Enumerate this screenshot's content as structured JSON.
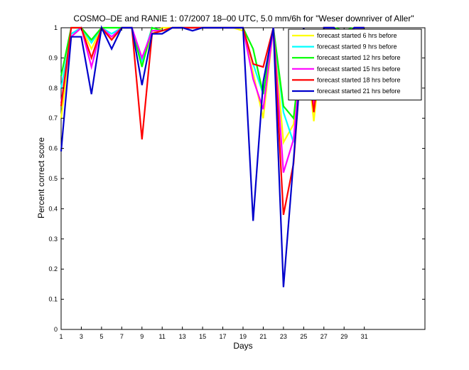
{
  "chart_data": {
    "type": "line",
    "title": "COSMO–DE and RANIE 1: 07/2007 18–00 UTC, 5.0 mm/6h for \"Weser downriver of Aller\"",
    "xlabel": "Days",
    "ylabel": "Percent correct score",
    "xlim": [
      1,
      37
    ],
    "ylim": [
      0,
      1
    ],
    "xticks": [
      1,
      3,
      5,
      7,
      9,
      11,
      13,
      15,
      17,
      19,
      21,
      23,
      25,
      27,
      29,
      31
    ],
    "yticks": [
      0,
      0.1,
      0.2,
      0.3,
      0.4,
      0.5,
      0.6,
      0.7,
      0.8,
      0.9,
      1
    ],
    "ytick_labels": [
      "0",
      "0.1",
      "0.2",
      "0.3",
      "0.4",
      "0.5",
      "0.6",
      "0.7",
      "0.8",
      "0.9",
      "1"
    ],
    "grid": false,
    "legend_position": "top-right",
    "x": [
      1,
      2,
      3,
      4,
      5,
      6,
      7,
      8,
      9,
      10,
      11,
      12,
      13,
      14,
      15,
      16,
      17,
      18,
      19,
      20,
      21,
      22,
      23,
      24,
      25,
      26,
      27,
      28,
      29,
      30,
      31
    ],
    "series": [
      {
        "name": "forecast started 6 hrs before",
        "color": "#ffff00",
        "values": [
          0.7,
          0.97,
          1.0,
          0.93,
          1.0,
          0.96,
          1.0,
          1.0,
          0.88,
          0.98,
          1.0,
          1.0,
          1.0,
          1.0,
          1.0,
          1.0,
          1.0,
          1.0,
          0.99,
          0.85,
          0.7,
          1.0,
          0.62,
          0.68,
          1.0,
          0.69,
          1.0,
          1.0,
          0.94,
          1.0,
          1.0
        ]
      },
      {
        "name": "forecast started 9 hrs before",
        "color": "#00ffff",
        "values": [
          0.8,
          0.98,
          1.0,
          0.95,
          1.0,
          0.98,
          1.0,
          1.0,
          0.89,
          1.0,
          0.99,
          1.0,
          1.0,
          1.0,
          1.0,
          1.0,
          1.0,
          1.0,
          1.0,
          0.88,
          0.78,
          1.0,
          0.72,
          0.62,
          1.0,
          0.82,
          1.0,
          1.0,
          0.98,
          1.0,
          1.0
        ]
      },
      {
        "name": "forecast started 12 hrs before",
        "color": "#00ff00",
        "values": [
          0.84,
          1.0,
          1.0,
          0.96,
          1.0,
          1.0,
          1.0,
          1.0,
          0.87,
          1.0,
          0.99,
          1.0,
          1.0,
          1.0,
          1.0,
          1.0,
          1.0,
          1.0,
          1.0,
          0.93,
          0.78,
          1.0,
          0.74,
          0.7,
          1.0,
          0.78,
          1.0,
          1.0,
          0.99,
          1.0,
          1.0
        ]
      },
      {
        "name": "forecast started 15 hrs before",
        "color": "#ff00ff",
        "values": [
          0.75,
          0.97,
          1.0,
          0.87,
          1.0,
          0.97,
          1.0,
          1.0,
          0.9,
          0.99,
          0.99,
          1.0,
          1.0,
          1.0,
          1.0,
          1.0,
          1.0,
          1.0,
          1.0,
          0.83,
          0.73,
          1.0,
          0.52,
          0.63,
          1.0,
          0.74,
          1.0,
          1.0,
          0.97,
          1.0,
          1.0
        ]
      },
      {
        "name": "forecast started 18 hrs before",
        "color": "#ff0000",
        "values": [
          0.74,
          1.0,
          1.0,
          0.9,
          1.0,
          0.96,
          1.0,
          1.0,
          0.63,
          0.98,
          0.99,
          1.0,
          1.0,
          1.0,
          1.0,
          1.0,
          1.0,
          1.0,
          1.0,
          0.88,
          0.87,
          1.0,
          0.38,
          0.55,
          1.0,
          0.72,
          1.0,
          1.0,
          0.97,
          1.0,
          1.0
        ]
      },
      {
        "name": "forecast started 21 hrs before",
        "color": "#0000cc",
        "values": [
          0.59,
          0.97,
          0.97,
          0.78,
          1.0,
          0.93,
          1.0,
          1.0,
          0.81,
          0.98,
          0.98,
          1.0,
          1.0,
          0.99,
          1.0,
          1.0,
          1.0,
          1.0,
          1.0,
          0.36,
          0.82,
          1.0,
          0.14,
          0.56,
          1.0,
          0.76,
          1.0,
          1.0,
          0.96,
          1.0,
          1.0
        ]
      }
    ]
  }
}
